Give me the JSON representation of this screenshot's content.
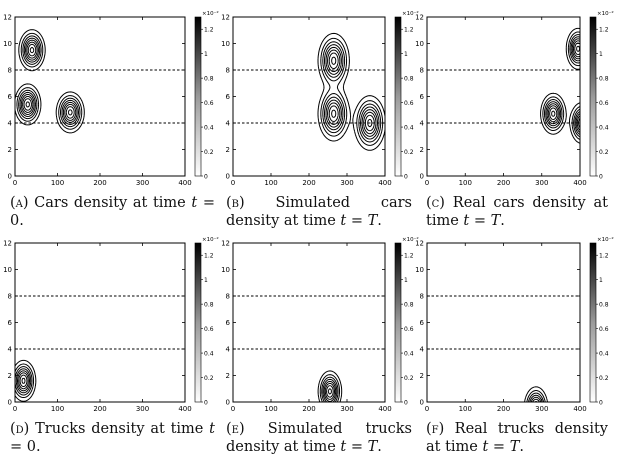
{
  "colorbar_exponent": "×10⁻²",
  "colorbar_ticks": [
    "0",
    "0.2",
    "0.4",
    "0.6",
    "0.8",
    "1",
    "1.2"
  ],
  "x_ticks": [
    "0",
    "100",
    "200",
    "300",
    "400"
  ],
  "y_ticks": [
    "0",
    "2",
    "4",
    "6",
    "8",
    "10",
    "12"
  ],
  "captions": [
    {
      "label": "(a)",
      "before": " Cars density at time ",
      "math": "t",
      "after": " = 0."
    },
    {
      "label": "(b)",
      "before": " Simulated cars density at time ",
      "math": "t = T",
      "after": "."
    },
    {
      "label": "(c)",
      "before": " Real cars density at time ",
      "math": "t = T",
      "after": "."
    },
    {
      "label": "(d)",
      "before": " Trucks density at time ",
      "math": "t",
      "after": " = 0."
    },
    {
      "label": "(e)",
      "before": " Simulated trucks density at time ",
      "math": "t = T",
      "after": "."
    },
    {
      "label": "(f)",
      "before": " Real trucks density at time ",
      "math": "t = T",
      "after": "."
    }
  ],
  "chart_data": [
    {
      "type": "contour",
      "xlim": [
        0,
        400
      ],
      "ylim": [
        0,
        12
      ],
      "dashed_lines_y": [
        4,
        8
      ],
      "peaks": [
        {
          "x": 40,
          "y": 9.5,
          "sx": 15,
          "sy": 0.75,
          "level": 1.25
        },
        {
          "x": 30,
          "y": 5.4,
          "sx": 15,
          "sy": 0.75,
          "level": 1.25
        },
        {
          "x": 130,
          "y": 4.8,
          "sx": 16,
          "sy": 0.75,
          "level": 1.25
        }
      ]
    },
    {
      "type": "contour",
      "xlim": [
        0,
        400
      ],
      "ylim": [
        0,
        12
      ],
      "dashed_lines_y": [
        4,
        8
      ],
      "peaks": [
        {
          "x": 265,
          "y": 8.7,
          "sx": 20,
          "sy": 1.0,
          "level": 1.25
        },
        {
          "x": 265,
          "y": 4.7,
          "sx": 20,
          "sy": 1.0,
          "level": 1.25
        },
        {
          "x": 360,
          "y": 4.0,
          "sx": 20,
          "sy": 1.0,
          "level": 1.25
        }
      ]
    },
    {
      "type": "contour",
      "xlim": [
        0,
        400
      ],
      "ylim": [
        0,
        12
      ],
      "dashed_lines_y": [
        4,
        8
      ],
      "peaks": [
        {
          "x": 395,
          "y": 9.6,
          "sx": 15,
          "sy": 0.75,
          "level": 1.25
        },
        {
          "x": 330,
          "y": 4.7,
          "sx": 16,
          "sy": 0.75,
          "level": 1.25
        },
        {
          "x": 405,
          "y": 4.0,
          "sx": 15,
          "sy": 0.75,
          "level": 1.25
        }
      ]
    },
    {
      "type": "contour",
      "xlim": [
        0,
        400
      ],
      "ylim": [
        0,
        12
      ],
      "dashed_lines_y": [
        4,
        8
      ],
      "peaks": [
        {
          "x": 20,
          "y": 1.6,
          "sx": 14,
          "sy": 0.75,
          "level": 1.25
        }
      ]
    },
    {
      "type": "contour",
      "xlim": [
        0,
        400
      ],
      "ylim": [
        0,
        12
      ],
      "dashed_lines_y": [
        4,
        8
      ],
      "peaks": [
        {
          "x": 255,
          "y": 0.8,
          "sx": 15,
          "sy": 0.75,
          "level": 1.25
        }
      ]
    },
    {
      "type": "contour",
      "xlim": [
        0,
        400
      ],
      "ylim": [
        0,
        12
      ],
      "dashed_lines_y": [
        4,
        8
      ],
      "peaks": [
        {
          "x": 285,
          "y": -0.4,
          "sx": 15,
          "sy": 0.75,
          "level": 1.25
        }
      ]
    }
  ]
}
